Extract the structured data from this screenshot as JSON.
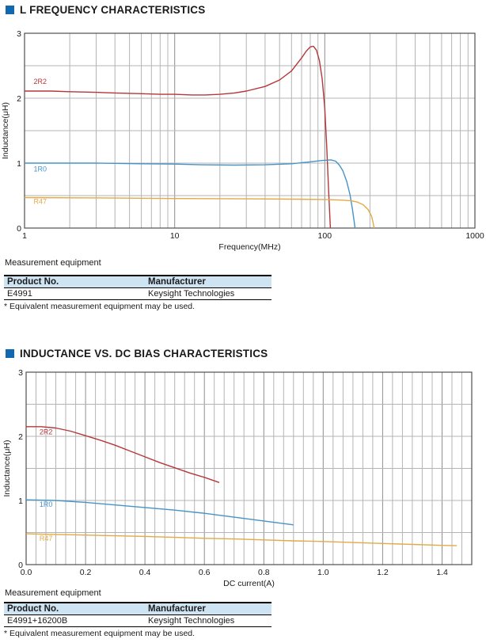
{
  "colors": {
    "accent_blue": "#1168af",
    "table_header_bg": "#cfe4f3",
    "grid_minor": "#b4b4b4",
    "grid_major": "#8e8e8e",
    "plot_border": "#4f4f4f",
    "series_red": "#b5373a",
    "series_blue": "#4593c9",
    "series_yellow": "#e3aa47"
  },
  "section1": {
    "title": "L FREQUENCY CHARACTERISTICS",
    "table_caption": "Measurement equipment",
    "table": {
      "headers": [
        "Product No.",
        "Manufacturer"
      ],
      "rows": [
        [
          "E4991",
          "Keysight Technologies"
        ]
      ]
    },
    "footnote": "* Equivalent measurement equipment may be used."
  },
  "section2": {
    "title": "INDUCTANCE VS. DC BIAS CHARACTERISTICS",
    "table_caption": "Measurement equipment",
    "table": {
      "headers": [
        "Product No.",
        "Manufacturer"
      ],
      "rows": [
        [
          "E4991+16200B",
          "Keysight Technologies"
        ]
      ]
    },
    "footnote": "* Equivalent measurement equipment may be used."
  },
  "chart_data": [
    {
      "type": "line",
      "title": "L FREQUENCY CHARACTERISTICS",
      "xlabel": "Frequency(MHz)",
      "ylabel": "Inductance(μH)",
      "xscale": "log",
      "xlim": [
        1,
        1000
      ],
      "ylim": [
        0,
        3
      ],
      "xticks": [
        1,
        10,
        100,
        1000
      ],
      "xtick_labels": [
        "1",
        "10",
        "100",
        "1000"
      ],
      "yticks": [
        0,
        1,
        2,
        3
      ],
      "ytick_labels": [
        "0",
        "1",
        "2",
        "3"
      ],
      "ygrid_step": 0.5,
      "grid": true,
      "legend_position": "inline-left",
      "series": [
        {
          "name": "2R2",
          "color": "#b5373a",
          "label_at": [
            1.15,
            2.22
          ],
          "points": [
            [
              1,
              2.11
            ],
            [
              1.5,
              2.11
            ],
            [
              2,
              2.1
            ],
            [
              3,
              2.09
            ],
            [
              4,
              2.08
            ],
            [
              6,
              2.07
            ],
            [
              8,
              2.06
            ],
            [
              10,
              2.06
            ],
            [
              13,
              2.05
            ],
            [
              16,
              2.05
            ],
            [
              20,
              2.06
            ],
            [
              25,
              2.08
            ],
            [
              30,
              2.11
            ],
            [
              40,
              2.18
            ],
            [
              50,
              2.28
            ],
            [
              60,
              2.42
            ],
            [
              70,
              2.62
            ],
            [
              75,
              2.72
            ],
            [
              80,
              2.79
            ],
            [
              84,
              2.8
            ],
            [
              88,
              2.74
            ],
            [
              92,
              2.58
            ],
            [
              96,
              2.3
            ],
            [
              100,
              1.85
            ],
            [
              103,
              1.25
            ],
            [
              106,
              0.6
            ],
            [
              109,
              0.0
            ]
          ]
        },
        {
          "name": "1R0",
          "color": "#4593c9",
          "label_at": [
            1.15,
            0.87
          ],
          "points": [
            [
              1,
              1.0
            ],
            [
              3,
              1.0
            ],
            [
              6,
              0.99
            ],
            [
              10,
              0.985
            ],
            [
              15,
              0.975
            ],
            [
              25,
              0.97
            ],
            [
              40,
              0.975
            ],
            [
              60,
              0.99
            ],
            [
              80,
              1.02
            ],
            [
              95,
              1.04
            ],
            [
              110,
              1.05
            ],
            [
              118,
              1.03
            ],
            [
              125,
              0.97
            ],
            [
              132,
              0.88
            ],
            [
              140,
              0.72
            ],
            [
              147,
              0.52
            ],
            [
              153,
              0.28
            ],
            [
              158,
              0.05
            ],
            [
              159,
              0.0
            ]
          ]
        },
        {
          "name": "R47",
          "color": "#e3aa47",
          "label_at": [
            1.15,
            0.37
          ],
          "points": [
            [
              1,
              0.47
            ],
            [
              3,
              0.465
            ],
            [
              10,
              0.455
            ],
            [
              30,
              0.45
            ],
            [
              60,
              0.445
            ],
            [
              100,
              0.44
            ],
            [
              130,
              0.43
            ],
            [
              150,
              0.42
            ],
            [
              165,
              0.4
            ],
            [
              180,
              0.36
            ],
            [
              195,
              0.28
            ],
            [
              205,
              0.18
            ],
            [
              210,
              0.08
            ],
            [
              213,
              0.0
            ]
          ]
        }
      ]
    },
    {
      "type": "line",
      "title": "INDUCTANCE VS. DC BIAS CHARACTERISTICS",
      "xlabel": "DC current(A)",
      "ylabel": "Inductance(μH)",
      "xscale": "linear",
      "xlim": [
        0,
        1.5
      ],
      "ylim": [
        0,
        3
      ],
      "xticks": [
        0,
        0.2,
        0.4,
        0.6,
        0.8,
        1.0,
        1.2,
        1.4
      ],
      "xtick_labels": [
        "0.0",
        "0.2",
        "0.4",
        "0.6",
        "0.8",
        "1.0",
        "1.2",
        "1.4"
      ],
      "yticks": [
        0,
        1,
        2,
        3
      ],
      "ytick_labels": [
        "0",
        "1",
        "2",
        "3"
      ],
      "xgrid_minor": 0.0333333,
      "xgrid_major": 0.2,
      "ygrid_step": 0.5,
      "grid": true,
      "legend_position": "inline-left",
      "series": [
        {
          "name": "2R2",
          "color": "#b5373a",
          "label_at": [
            0.045,
            2.03
          ],
          "points": [
            [
              0,
              2.15
            ],
            [
              0.05,
              2.15
            ],
            [
              0.1,
              2.13
            ],
            [
              0.15,
              2.08
            ],
            [
              0.2,
              2.01
            ],
            [
              0.25,
              1.94
            ],
            [
              0.3,
              1.86
            ],
            [
              0.35,
              1.77
            ],
            [
              0.4,
              1.68
            ],
            [
              0.45,
              1.59
            ],
            [
              0.5,
              1.51
            ],
            [
              0.55,
              1.43
            ],
            [
              0.6,
              1.36
            ],
            [
              0.65,
              1.28
            ]
          ]
        },
        {
          "name": "1R0",
          "color": "#4593c9",
          "label_at": [
            0.045,
            0.9
          ],
          "points": [
            [
              0,
              1.01
            ],
            [
              0.1,
              1.0
            ],
            [
              0.2,
              0.97
            ],
            [
              0.3,
              0.93
            ],
            [
              0.4,
              0.89
            ],
            [
              0.5,
              0.85
            ],
            [
              0.6,
              0.8
            ],
            [
              0.7,
              0.74
            ],
            [
              0.8,
              0.68
            ],
            [
              0.9,
              0.62
            ]
          ]
        },
        {
          "name": "R47",
          "color": "#e3aa47",
          "label_at": [
            0.045,
            0.37
          ],
          "points": [
            [
              0,
              0.48
            ],
            [
              0.1,
              0.47
            ],
            [
              0.2,
              0.46
            ],
            [
              0.3,
              0.45
            ],
            [
              0.4,
              0.44
            ],
            [
              0.5,
              0.425
            ],
            [
              0.6,
              0.41
            ],
            [
              0.7,
              0.4
            ],
            [
              0.8,
              0.385
            ],
            [
              0.9,
              0.37
            ],
            [
              1.0,
              0.36
            ],
            [
              1.1,
              0.345
            ],
            [
              1.2,
              0.33
            ],
            [
              1.3,
              0.315
            ],
            [
              1.4,
              0.3
            ],
            [
              1.45,
              0.295
            ]
          ]
        }
      ]
    }
  ]
}
